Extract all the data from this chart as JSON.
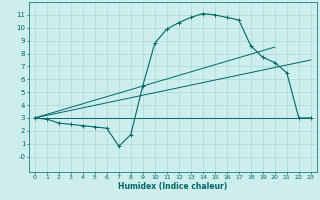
{
  "xlabel": "Humidex (Indice chaleur)",
  "background_color": "#cdeeed",
  "line_color": "#006666",
  "grid_color": "#a8dada",
  "xlim": [
    -0.5,
    23.5
  ],
  "ylim": [
    -1.2,
    12
  ],
  "xticks": [
    0,
    1,
    2,
    3,
    4,
    5,
    6,
    7,
    8,
    9,
    10,
    11,
    12,
    13,
    14,
    15,
    16,
    17,
    18,
    19,
    20,
    21,
    22,
    23
  ],
  "yticks": [
    0,
    1,
    2,
    3,
    4,
    5,
    6,
    7,
    8,
    9,
    10,
    11
  ],
  "ytick_labels": [
    "-0",
    "1",
    "2",
    "3",
    "4",
    "5",
    "6",
    "7",
    "8",
    "9",
    "10",
    "11"
  ],
  "curve1_x": [
    0,
    1,
    2,
    3,
    4,
    5,
    6,
    7,
    8,
    9,
    10,
    11,
    12,
    13,
    14,
    15,
    16,
    17,
    18,
    19,
    20,
    21,
    22,
    23
  ],
  "curve1_y": [
    3.0,
    2.9,
    2.6,
    2.5,
    2.4,
    2.3,
    2.2,
    0.8,
    1.7,
    5.5,
    8.8,
    9.9,
    10.4,
    10.8,
    11.1,
    11.0,
    10.8,
    10.6,
    8.6,
    7.7,
    7.3,
    6.5,
    3.0,
    3.0
  ],
  "curve2_x": [
    0,
    23
  ],
  "curve2_y": [
    3.0,
    3.0
  ],
  "curve3_x": [
    0,
    23
  ],
  "curve3_y": [
    3.0,
    7.5
  ],
  "curve4_x": [
    0,
    20
  ],
  "curve4_y": [
    3.0,
    8.5
  ]
}
